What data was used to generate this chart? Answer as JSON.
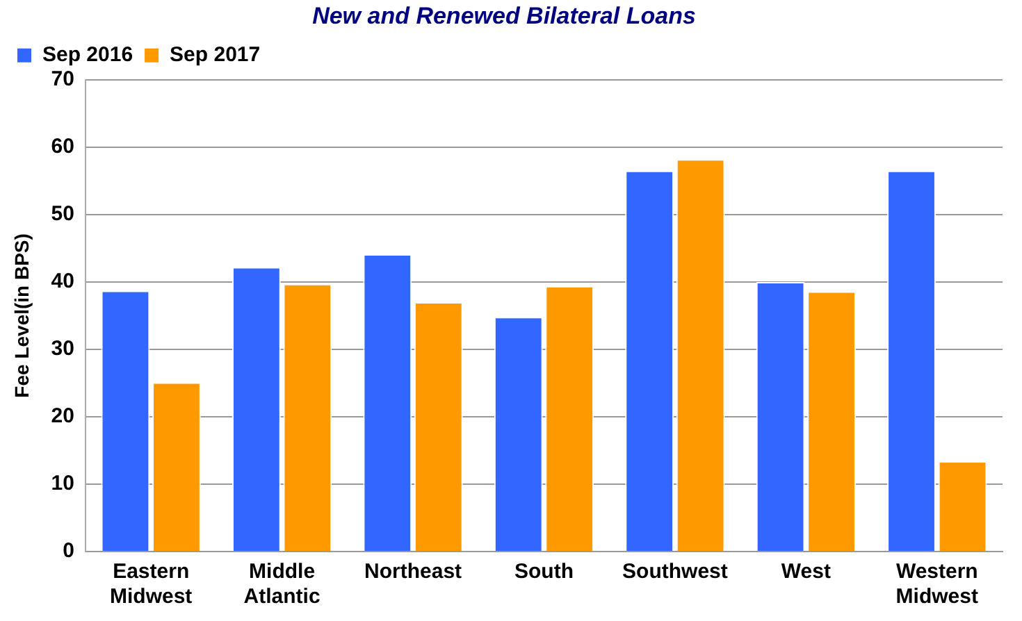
{
  "chart_data": {
    "type": "bar",
    "title": "New and Renewed Bilateral Loans",
    "ylabel": "Fee Level(in BPS)",
    "categories": [
      "Eastern Midwest",
      "Middle Atlantic",
      "Northeast",
      "South",
      "Southwest",
      "West",
      "Western Midwest"
    ],
    "series": [
      {
        "name": "Sep 2016",
        "color": "#3366ff",
        "values": [
          38.7,
          42.2,
          44.1,
          34.8,
          56.5,
          40.0,
          56.5
        ]
      },
      {
        "name": "Sep 2017",
        "color": "#ff9900",
        "values": [
          25.1,
          39.7,
          37.0,
          39.4,
          58.2,
          38.6,
          13.4
        ]
      }
    ],
    "ylim": [
      0,
      70
    ],
    "yticks": [
      0,
      10,
      20,
      30,
      40,
      50,
      60,
      70
    ],
    "grid": "y",
    "legend": "top left"
  }
}
